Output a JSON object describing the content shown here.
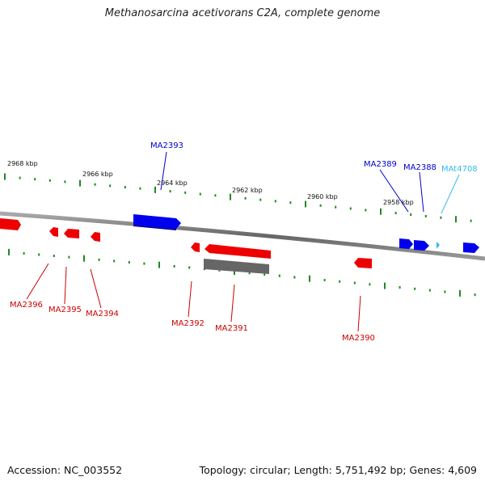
{
  "title": "Methanosarcina acetivorans C2A, complete genome",
  "footer": {
    "accession": "Accession: NC_003552",
    "summary": "Topology: circular; Length: 5,751,492 bp; Genes: 4,609"
  },
  "colors": {
    "forward_gene": "#0000ee",
    "reverse_gene": "#ee0000",
    "trna_gene": "#33bbee",
    "pseudo_gene": "#666666",
    "tick": "#228822",
    "backbone": "#888888"
  },
  "kbp_labels": [
    "2968 kbp",
    "2966 kbp",
    "2964 kbp",
    "2962 kbp",
    "2960 kbp",
    "2958 kbp"
  ],
  "gene_labels": {
    "top": [
      "MA2393",
      "MA2389",
      "MA2388",
      "MAt4708"
    ],
    "bottom": [
      "MA2396",
      "MA2395",
      "MA2394",
      "MA2392",
      "MA2391",
      "MA2390"
    ]
  }
}
